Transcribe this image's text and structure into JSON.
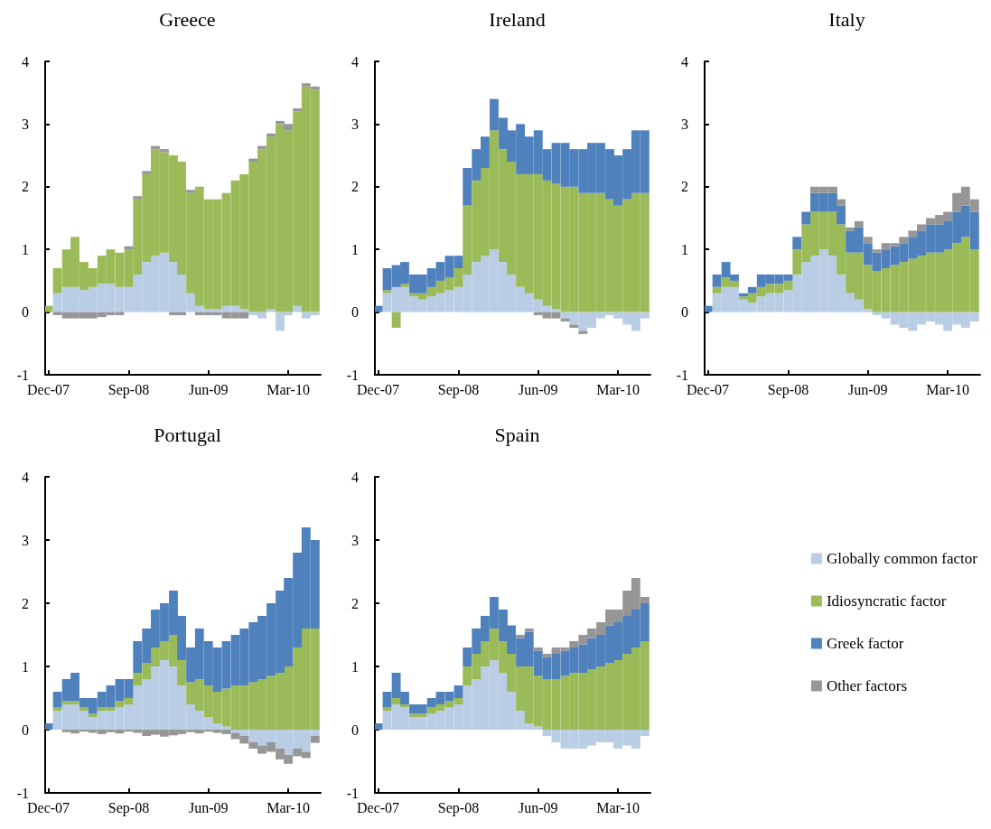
{
  "chart_data": [
    {
      "type": "bar",
      "title": "Greece",
      "stacked": true,
      "legend": false,
      "x": [
        "2007-12",
        "2008-01",
        "2008-02",
        "2008-03",
        "2008-04",
        "2008-05",
        "2008-06",
        "2008-07",
        "2008-08",
        "2008-09",
        "2008-10",
        "2008-11",
        "2008-12",
        "2009-01",
        "2009-02",
        "2009-03",
        "2009-04",
        "2009-05",
        "2009-06",
        "2009-07",
        "2009-08",
        "2009-09",
        "2009-10",
        "2009-11",
        "2009-12",
        "2010-01",
        "2010-02",
        "2010-03",
        "2010-04",
        "2010-05",
        "2010-06"
      ],
      "xlim": [
        "2007-11-20",
        "2010-06-20"
      ],
      "xticks": [
        {
          "value": "2007-12-01",
          "label": "Dec-07"
        },
        {
          "value": "2008-09-01",
          "label": "Sep-08"
        },
        {
          "value": "2009-06-01",
          "label": "Jun-09"
        },
        {
          "value": "2010-03-01",
          "label": "Mar-10"
        }
      ],
      "ylim": [
        -1,
        4
      ],
      "yticks": [
        -1,
        0,
        1,
        2,
        3,
        4
      ],
      "grid": false,
      "series": [
        {
          "color": "#b9cde5",
          "values": [
            0,
            0.3,
            0.4,
            0.4,
            0.35,
            0.4,
            0.45,
            0.45,
            0.4,
            0.4,
            0.6,
            0.8,
            0.9,
            0.95,
            0.8,
            0.6,
            0.3,
            0.1,
            0.05,
            0.05,
            0.1,
            0.1,
            0.05,
            -0.05,
            -0.1,
            0.05,
            -0.3,
            -0.05,
            0.1,
            -0.1,
            -0.05
          ]
        },
        {
          "color": "#9bbb59",
          "values": [
            0.1,
            0.4,
            0.6,
            0.8,
            0.45,
            0.3,
            0.45,
            0.55,
            0.55,
            0.6,
            1.2,
            1.4,
            1.7,
            1.6,
            1.7,
            1.8,
            1.6,
            1.9,
            1.75,
            1.75,
            1.8,
            2.0,
            2.15,
            2.4,
            2.6,
            2.75,
            3.0,
            2.9,
            3.1,
            3.6,
            3.55
          ]
        },
        {
          "color": "#969696",
          "values": [
            0,
            -0.05,
            -0.1,
            -0.1,
            -0.1,
            -0.1,
            -0.08,
            -0.05,
            -0.05,
            0.05,
            0.05,
            0.05,
            0.05,
            0.05,
            -0.05,
            -0.05,
            0.05,
            -0.05,
            -0.05,
            -0.05,
            -0.1,
            -0.1,
            -0.1,
            0.05,
            0.05,
            0.05,
            0.05,
            0.1,
            0.05,
            0.05,
            0.05
          ]
        }
      ]
    },
    {
      "type": "bar",
      "title": "Ireland",
      "stacked": true,
      "legend": false,
      "x": [
        "2007-12",
        "2008-01",
        "2008-02",
        "2008-03",
        "2008-04",
        "2008-05",
        "2008-06",
        "2008-07",
        "2008-08",
        "2008-09",
        "2008-10",
        "2008-11",
        "2008-12",
        "2009-01",
        "2009-02",
        "2009-03",
        "2009-04",
        "2009-05",
        "2009-06",
        "2009-07",
        "2009-08",
        "2009-09",
        "2009-10",
        "2009-11",
        "2009-12",
        "2010-01",
        "2010-02",
        "2010-03",
        "2010-04",
        "2010-05",
        "2010-06"
      ],
      "xlim": [
        "2007-11-20",
        "2010-06-20"
      ],
      "xticks": [
        {
          "value": "2007-12-01",
          "label": "Dec-07"
        },
        {
          "value": "2008-09-01",
          "label": "Sep-08"
        },
        {
          "value": "2009-06-01",
          "label": "Jun-09"
        },
        {
          "value": "2010-03-01",
          "label": "Mar-10"
        }
      ],
      "ylim": [
        -1,
        4
      ],
      "yticks": [
        -1,
        0,
        1,
        2,
        3,
        4
      ],
      "grid": false,
      "series": [
        {
          "color": "#b9cde5",
          "values": [
            0,
            0.3,
            0.4,
            0.4,
            0.25,
            0.2,
            0.25,
            0.3,
            0.35,
            0.4,
            0.6,
            0.8,
            0.9,
            1.0,
            0.8,
            0.6,
            0.4,
            0.3,
            0.2,
            0.1,
            0.05,
            -0.1,
            -0.2,
            -0.3,
            -0.25,
            -0.1,
            -0.05,
            -0.1,
            -0.2,
            -0.3,
            -0.1
          ]
        },
        {
          "color": "#9bbb59",
          "values": [
            0,
            0.05,
            -0.25,
            0.05,
            0.05,
            0.1,
            0.15,
            0.2,
            0.2,
            0.3,
            1.1,
            1.3,
            1.4,
            1.9,
            1.8,
            1.8,
            1.8,
            1.9,
            2.0,
            2.0,
            2.0,
            2.0,
            2.0,
            1.9,
            1.9,
            1.9,
            1.8,
            1.7,
            1.8,
            1.9,
            1.9
          ]
        },
        {
          "color": "#4f81bd",
          "values": [
            0.1,
            0.35,
            0.35,
            0.35,
            0.3,
            0.3,
            0.3,
            0.3,
            0.35,
            0.2,
            0.6,
            0.5,
            0.5,
            0.5,
            0.5,
            0.5,
            0.8,
            0.6,
            0.7,
            0.5,
            0.65,
            0.7,
            0.6,
            0.7,
            0.8,
            0.8,
            0.8,
            0.8,
            0.8,
            1.0,
            1.0
          ]
        },
        {
          "color": "#969696",
          "values": [
            0,
            0,
            0,
            0,
            0,
            0,
            0,
            0,
            0,
            0,
            0,
            0,
            0,
            0,
            0,
            0,
            0,
            0,
            -0.05,
            -0.1,
            -0.1,
            -0.05,
            -0.05,
            -0.05,
            0,
            0,
            0,
            0,
            0,
            0,
            0
          ]
        }
      ]
    },
    {
      "type": "bar",
      "title": "Italy",
      "stacked": true,
      "legend": false,
      "x": [
        "2007-12",
        "2008-01",
        "2008-02",
        "2008-03",
        "2008-04",
        "2008-05",
        "2008-06",
        "2008-07",
        "2008-08",
        "2008-09",
        "2008-10",
        "2008-11",
        "2008-12",
        "2009-01",
        "2009-02",
        "2009-03",
        "2009-04",
        "2009-05",
        "2009-06",
        "2009-07",
        "2009-08",
        "2009-09",
        "2009-10",
        "2009-11",
        "2009-12",
        "2010-01",
        "2010-02",
        "2010-03",
        "2010-04",
        "2010-05",
        "2010-06"
      ],
      "xlim": [
        "2007-11-20",
        "2010-06-20"
      ],
      "xticks": [
        {
          "value": "2007-12-01",
          "label": "Dec-07"
        },
        {
          "value": "2008-09-01",
          "label": "Sep-08"
        },
        {
          "value": "2009-06-01",
          "label": "Jun-09"
        },
        {
          "value": "2010-03-01",
          "label": "Mar-10"
        }
      ],
      "ylim": [
        -1,
        4
      ],
      "yticks": [
        -1,
        0,
        1,
        2,
        3,
        4
      ],
      "grid": false,
      "series": [
        {
          "color": "#b9cde5",
          "values": [
            0,
            0.3,
            0.4,
            0.4,
            0.2,
            0.15,
            0.25,
            0.3,
            0.3,
            0.35,
            0.6,
            0.8,
            0.9,
            1.0,
            0.9,
            0.6,
            0.3,
            0.2,
            0.05,
            -0.05,
            -0.1,
            -0.2,
            -0.25,
            -0.3,
            -0.2,
            -0.15,
            -0.2,
            -0.3,
            -0.2,
            -0.25,
            -0.15
          ]
        },
        {
          "color": "#9bbb59",
          "values": [
            0,
            0.1,
            0.15,
            0.1,
            0.05,
            0.15,
            0.15,
            0.15,
            0.15,
            0.15,
            0.4,
            0.6,
            0.7,
            0.6,
            0.7,
            0.8,
            0.65,
            0.75,
            0.7,
            0.65,
            0.7,
            0.75,
            0.8,
            0.85,
            0.9,
            0.95,
            0.95,
            1.0,
            1.1,
            1.2,
            1.0
          ]
        },
        {
          "color": "#4f81bd",
          "values": [
            0.1,
            0.2,
            0.25,
            0.1,
            0.05,
            0.1,
            0.2,
            0.15,
            0.15,
            0.1,
            0.2,
            0.2,
            0.3,
            0.3,
            0.3,
            0.3,
            0.35,
            0.4,
            0.35,
            0.3,
            0.3,
            0.3,
            0.3,
            0.35,
            0.4,
            0.45,
            0.45,
            0.45,
            0.5,
            0.5,
            0.6
          ]
        },
        {
          "color": "#969696",
          "values": [
            0,
            0,
            0,
            0,
            0,
            0,
            0,
            0,
            0,
            0,
            0,
            0,
            0.1,
            0.1,
            0.1,
            0.1,
            0.05,
            0.1,
            0.1,
            0.05,
            0.1,
            0.05,
            0.1,
            0.1,
            0.1,
            0.1,
            0.15,
            0.15,
            0.3,
            0.3,
            0.2
          ]
        }
      ]
    },
    {
      "type": "bar",
      "title": "Portugal",
      "stacked": true,
      "legend": false,
      "x": [
        "2007-12",
        "2008-01",
        "2008-02",
        "2008-03",
        "2008-04",
        "2008-05",
        "2008-06",
        "2008-07",
        "2008-08",
        "2008-09",
        "2008-10",
        "2008-11",
        "2008-12",
        "2009-01",
        "2009-02",
        "2009-03",
        "2009-04",
        "2009-05",
        "2009-06",
        "2009-07",
        "2009-08",
        "2009-09",
        "2009-10",
        "2009-11",
        "2009-12",
        "2010-01",
        "2010-02",
        "2010-03",
        "2010-04",
        "2010-05",
        "2010-06"
      ],
      "xlim": [
        "2007-11-20",
        "2010-06-20"
      ],
      "xticks": [
        {
          "value": "2007-12-01",
          "label": "Dec-07"
        },
        {
          "value": "2008-09-01",
          "label": "Sep-08"
        },
        {
          "value": "2009-06-01",
          "label": "Jun-09"
        },
        {
          "value": "2010-03-01",
          "label": "Mar-10"
        }
      ],
      "ylim": [
        -1,
        4
      ],
      "yticks": [
        -1,
        0,
        1,
        2,
        3,
        4
      ],
      "grid": false,
      "series": [
        {
          "color": "#b9cde5",
          "values": [
            0,
            0.3,
            0.4,
            0.4,
            0.3,
            0.2,
            0.3,
            0.3,
            0.35,
            0.4,
            0.7,
            0.8,
            1.0,
            1.1,
            1.0,
            0.7,
            0.4,
            0.3,
            0.2,
            0.1,
            0.05,
            -0.05,
            -0.1,
            -0.2,
            -0.25,
            -0.2,
            -0.3,
            -0.4,
            -0.3,
            -0.35,
            -0.1
          ]
        },
        {
          "color": "#9bbb59",
          "values": [
            0,
            0.05,
            0.05,
            0.05,
            0.05,
            0.05,
            0.05,
            0.05,
            0.1,
            0.1,
            0.2,
            0.25,
            0.3,
            0.3,
            0.5,
            0.4,
            0.35,
            0.5,
            0.5,
            0.5,
            0.6,
            0.7,
            0.7,
            0.75,
            0.8,
            0.85,
            0.9,
            1.0,
            1.3,
            1.6,
            1.6
          ]
        },
        {
          "color": "#4f81bd",
          "values": [
            0.1,
            0.25,
            0.35,
            0.45,
            0.15,
            0.25,
            0.25,
            0.35,
            0.35,
            0.3,
            0.5,
            0.55,
            0.6,
            0.6,
            0.7,
            0.7,
            0.55,
            0.8,
            0.7,
            0.7,
            0.75,
            0.8,
            0.9,
            0.95,
            1.0,
            1.15,
            1.3,
            1.4,
            1.5,
            1.6,
            1.4
          ]
        },
        {
          "color": "#969696",
          "values": [
            0,
            0,
            -0.04,
            -0.06,
            -0.03,
            -0.05,
            -0.07,
            -0.04,
            -0.06,
            -0.03,
            -0.05,
            -0.1,
            -0.08,
            -0.11,
            -0.09,
            -0.07,
            -0.04,
            -0.06,
            -0.03,
            -0.05,
            -0.07,
            -0.1,
            -0.12,
            -0.1,
            -0.13,
            -0.15,
            -0.17,
            -0.14,
            -0.12,
            -0.1,
            -0.11
          ]
        }
      ]
    },
    {
      "type": "bar",
      "title": "Spain",
      "stacked": true,
      "legend": "right",
      "x": [
        "2007-12",
        "2008-01",
        "2008-02",
        "2008-03",
        "2008-04",
        "2008-05",
        "2008-06",
        "2008-07",
        "2008-08",
        "2008-09",
        "2008-10",
        "2008-11",
        "2008-12",
        "2009-01",
        "2009-02",
        "2009-03",
        "2009-04",
        "2009-05",
        "2009-06",
        "2009-07",
        "2009-08",
        "2009-09",
        "2009-10",
        "2009-11",
        "2009-12",
        "2010-01",
        "2010-02",
        "2010-03",
        "2010-04",
        "2010-05",
        "2010-06"
      ],
      "xlim": [
        "2007-11-20",
        "2010-06-20"
      ],
      "xticks": [
        {
          "value": "2007-12-01",
          "label": "Dec-07"
        },
        {
          "value": "2008-09-01",
          "label": "Sep-08"
        },
        {
          "value": "2009-06-01",
          "label": "Jun-09"
        },
        {
          "value": "2010-03-01",
          "label": "Mar-10"
        }
      ],
      "ylim": [
        -1,
        4
      ],
      "yticks": [
        -1,
        0,
        1,
        2,
        3,
        4
      ],
      "grid": false,
      "series": [
        {
          "name": "Globally common factor",
          "color": "#b9cde5",
          "values": [
            0,
            0.3,
            0.4,
            0.35,
            0.2,
            0.2,
            0.25,
            0.3,
            0.35,
            0.4,
            0.7,
            0.8,
            1.0,
            1.1,
            0.9,
            0.6,
            0.3,
            0.1,
            0.05,
            -0.1,
            -0.2,
            -0.3,
            -0.3,
            -0.3,
            -0.25,
            -0.2,
            -0.2,
            -0.3,
            -0.25,
            -0.3,
            -0.1
          ]
        },
        {
          "name": "Idiosyncratic factor",
          "color": "#9bbb59",
          "values": [
            0,
            0.05,
            0.1,
            0.05,
            0.05,
            0.05,
            0.1,
            0.1,
            0.1,
            0.1,
            0.3,
            0.4,
            0.4,
            0.5,
            0.5,
            0.6,
            0.7,
            0.9,
            0.8,
            0.8,
            0.8,
            0.85,
            0.9,
            0.9,
            0.95,
            1.0,
            1.05,
            1.1,
            1.2,
            1.3,
            1.4
          ]
        },
        {
          "name": "Greek factor",
          "color": "#4f81bd",
          "values": [
            0.1,
            0.25,
            0.4,
            0.2,
            0.15,
            0.15,
            0.15,
            0.2,
            0.15,
            0.2,
            0.3,
            0.4,
            0.4,
            0.5,
            0.5,
            0.45,
            0.45,
            0.55,
            0.4,
            0.35,
            0.4,
            0.4,
            0.4,
            0.45,
            0.5,
            0.5,
            0.6,
            0.6,
            0.6,
            0.6,
            0.6
          ]
        },
        {
          "name": "Other factors",
          "color": "#969696",
          "values": [
            0,
            0,
            0,
            0,
            0,
            0,
            0,
            0,
            0,
            0,
            0,
            0,
            0,
            0,
            0,
            0,
            0.05,
            0.05,
            0.05,
            0.05,
            0.1,
            0.05,
            0.1,
            0.15,
            0.15,
            0.2,
            0.25,
            0.2,
            0.4,
            0.5,
            0.1
          ]
        }
      ]
    }
  ]
}
